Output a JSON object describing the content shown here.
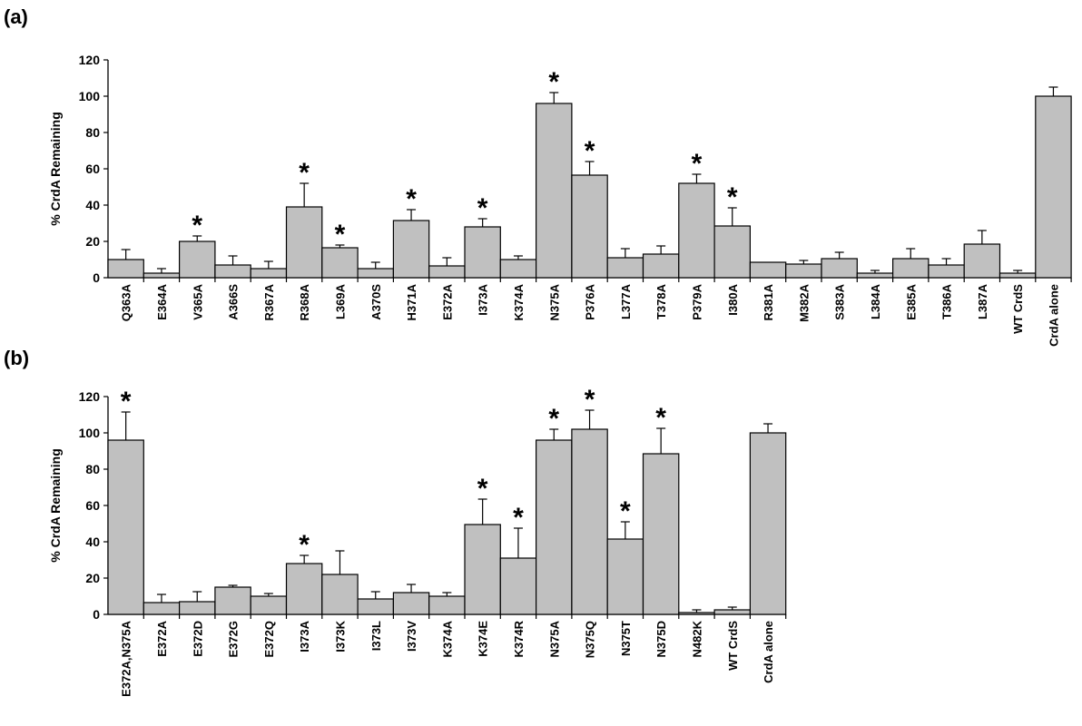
{
  "panels": [
    "(a)",
    "(b)"
  ],
  "significance_marker": "*",
  "colors": {
    "bar_fill": "#c0c0c0",
    "bar_stroke": "#000000",
    "axis": "#000000"
  },
  "chart_data": [
    {
      "type": "bar",
      "panel": "(a)",
      "ylabel": "% CrdA Remaining",
      "xlabel": "",
      "ylim": [
        0,
        120
      ],
      "yticks": [
        0,
        20,
        40,
        60,
        80,
        100,
        120
      ],
      "grid": false,
      "categories": [
        "Q363A",
        "E364A",
        "V365A",
        "A366S",
        "R367A",
        "R368A",
        "L369A",
        "A370S",
        "H371A",
        "E372A",
        "I373A",
        "K374A",
        "N375A",
        "P376A",
        "L377A",
        "T378A",
        "P379A",
        "I380A",
        "R381A",
        "M382A",
        "S383A",
        "L384A",
        "E385A",
        "T386A",
        "L387A",
        "WT CrdS",
        "CrdA alone"
      ],
      "values": [
        10,
        2.5,
        20,
        7,
        5,
        39,
        16.5,
        5,
        31.5,
        6.5,
        28,
        10,
        96,
        56.5,
        11,
        13,
        52,
        28.5,
        8.5,
        7.5,
        10.5,
        2.5,
        10.5,
        7,
        18.5,
        2.5,
        100
      ],
      "errors": [
        5.5,
        2.5,
        3,
        5,
        4,
        13,
        1.5,
        3.5,
        6,
        4.5,
        4.5,
        2,
        6,
        7.5,
        5,
        4.5,
        5,
        10,
        0,
        2,
        3.5,
        1.5,
        5.5,
        3.5,
        7.5,
        1.5,
        5
      ],
      "significant": [
        false,
        false,
        true,
        false,
        false,
        true,
        true,
        false,
        true,
        false,
        true,
        false,
        true,
        true,
        false,
        false,
        true,
        true,
        false,
        false,
        false,
        false,
        false,
        false,
        false,
        false,
        false
      ]
    },
    {
      "type": "bar",
      "panel": "(b)",
      "ylabel": "% CrdA Remaining",
      "xlabel": "",
      "ylim": [
        0,
        120
      ],
      "yticks": [
        0,
        20,
        40,
        60,
        80,
        100,
        120
      ],
      "grid": false,
      "categories": [
        "E372A,N375A",
        "E372A",
        "E372D",
        "E372G",
        "E372Q",
        "I373A",
        "I373K",
        "I373L",
        "I373V",
        "K374A",
        "K374E",
        "K374R",
        "N375A",
        "N375Q",
        "N375T",
        "N375D",
        "N482K",
        "WT CrdS",
        "CrdA alone"
      ],
      "values": [
        96,
        6.5,
        7,
        15,
        10,
        28,
        22,
        8.5,
        12,
        10,
        49.5,
        31,
        96,
        102,
        41.5,
        88.5,
        1,
        2.5,
        100
      ],
      "errors": [
        15.5,
        4.5,
        5.5,
        1,
        1.5,
        4.5,
        13,
        4,
        4.5,
        2,
        14,
        16.5,
        6,
        10.5,
        9.5,
        14,
        1.5,
        1.5,
        5
      ],
      "significant": [
        true,
        false,
        false,
        false,
        false,
        true,
        false,
        false,
        false,
        false,
        true,
        true,
        true,
        true,
        true,
        true,
        false,
        false,
        false
      ]
    }
  ]
}
